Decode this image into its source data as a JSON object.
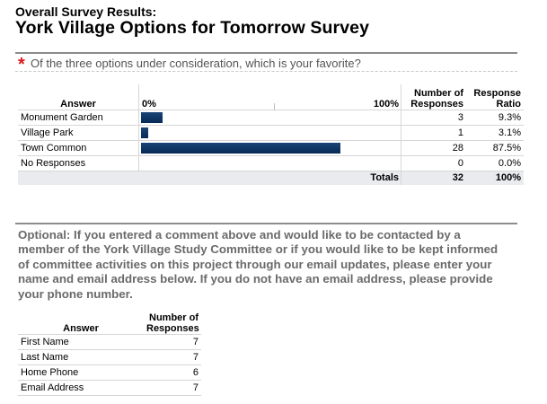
{
  "header": {
    "subtitle": "Overall Survey Results:",
    "title": "York Village Options for Tomorrow Survey"
  },
  "question1": {
    "required_marker": "*",
    "text": "Of the three options under consideration, which is your favorite?",
    "columns": {
      "answer": "Answer",
      "axis_min": "0%",
      "axis_max": "100%",
      "number_line1": "Number of",
      "number_line2": "Responses",
      "ratio_line1": "Response",
      "ratio_line2": "Ratio"
    },
    "rows": [
      {
        "answer": "Monument Garden",
        "count": "3",
        "ratio": "9.3%",
        "fraction": 0.093
      },
      {
        "answer": "Village Park",
        "count": "1",
        "ratio": "3.1%",
        "fraction": 0.031
      },
      {
        "answer": "Town Common",
        "count": "28",
        "ratio": "87.5%",
        "fraction": 0.875
      },
      {
        "answer": "No Responses",
        "count": "0",
        "ratio": "0.0%",
        "fraction": 0.0
      }
    ],
    "totals": {
      "label": "Totals",
      "count": "32",
      "ratio": "100%"
    },
    "bar_color": "#0b3263"
  },
  "question2": {
    "text": "Optional: If you entered a comment above and would like to be contacted by a member of the York Village Study Committee or if you would like to be kept informed of committee activities on this project through our email updates, please enter your name and email address below. If you do not have an email address, please provide your phone number.",
    "columns": {
      "answer": "Answer",
      "number_line1": "Number of",
      "number_line2": "Responses"
    },
    "rows": [
      {
        "answer": "First Name",
        "count": "7"
      },
      {
        "answer": "Last Name",
        "count": "7"
      },
      {
        "answer": "Home Phone",
        "count": "6"
      },
      {
        "answer": "Email Address",
        "count": "7"
      }
    ]
  },
  "colors": {
    "required": "#d7191c",
    "question_text": "#555555",
    "rule": "#8c8c8c"
  }
}
